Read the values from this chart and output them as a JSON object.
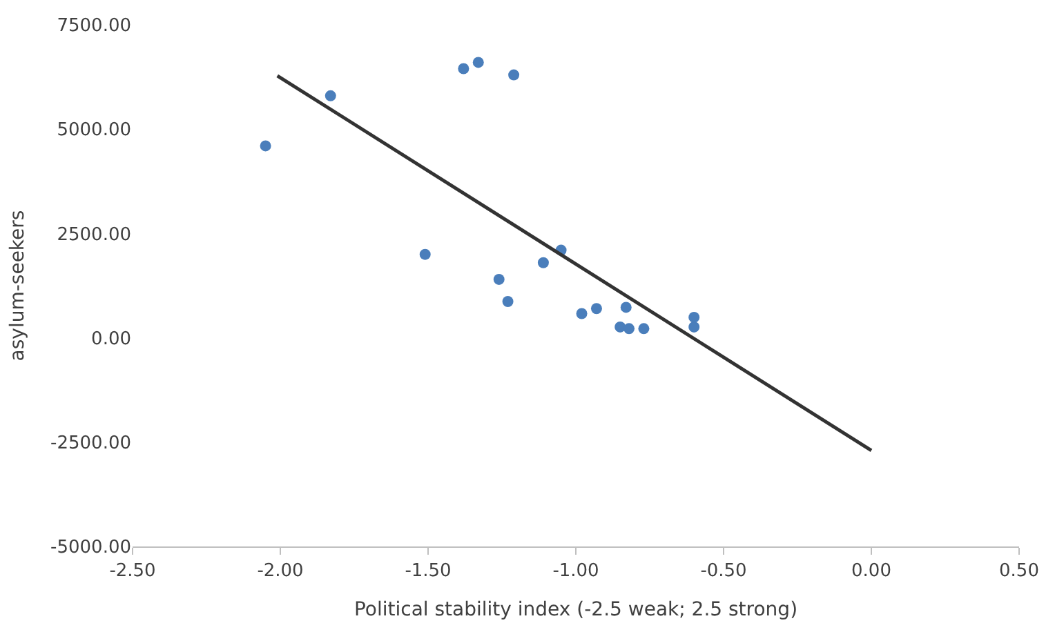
{
  "chart_data": {
    "type": "scatter",
    "xlabel": "Political stability index (-2.5 weak; 2.5 strong)",
    "ylabel": "asylum-seekers",
    "series": [
      {
        "color": "#4a7ebb",
        "marker": "circle",
        "x": [
          -2.05,
          -1.83,
          -1.51,
          -1.38,
          -1.33,
          -1.26,
          -1.23,
          -1.21,
          -1.11,
          -1.05,
          -0.98,
          -0.93,
          -0.85,
          -0.83,
          -0.82,
          -0.77,
          -0.6,
          -0.6
        ],
        "values": [
          4600,
          5800,
          2000,
          6450,
          6600,
          1400,
          870,
          6300,
          1800,
          2100,
          580,
          700,
          260,
          730,
          220,
          220,
          260,
          490
        ]
      },
      {
        "type": "line",
        "color": "#333333",
        "marker": "none",
        "line_style": "solid",
        "x": [
          -2.01,
          0
        ],
        "values": [
          6280,
          -2700
        ]
      }
    ],
    "xlim": [
      -2.5,
      0.5
    ],
    "ylim": [
      -5000,
      7500
    ],
    "xticks": [
      {
        "value": -2.5,
        "label": "-2.50"
      },
      {
        "value": -2,
        "label": "-2.00"
      },
      {
        "value": -1.5,
        "label": "-1.50"
      },
      {
        "value": -1,
        "label": "-1.00"
      },
      {
        "value": -0.5,
        "label": "-0.50"
      },
      {
        "value": 0,
        "label": "0.00"
      },
      {
        "value": 0.5,
        "label": "0.50"
      }
    ],
    "yticks": [
      {
        "value": -5000,
        "label": "-5000.00"
      },
      {
        "value": -2500,
        "label": "-2500.00"
      },
      {
        "value": 0,
        "label": "0.00"
      },
      {
        "value": 2500,
        "label": "2500.00"
      },
      {
        "value": 5000,
        "label": "5000.00"
      },
      {
        "value": 7500,
        "label": "7500.00"
      }
    ],
    "legend": false
  }
}
